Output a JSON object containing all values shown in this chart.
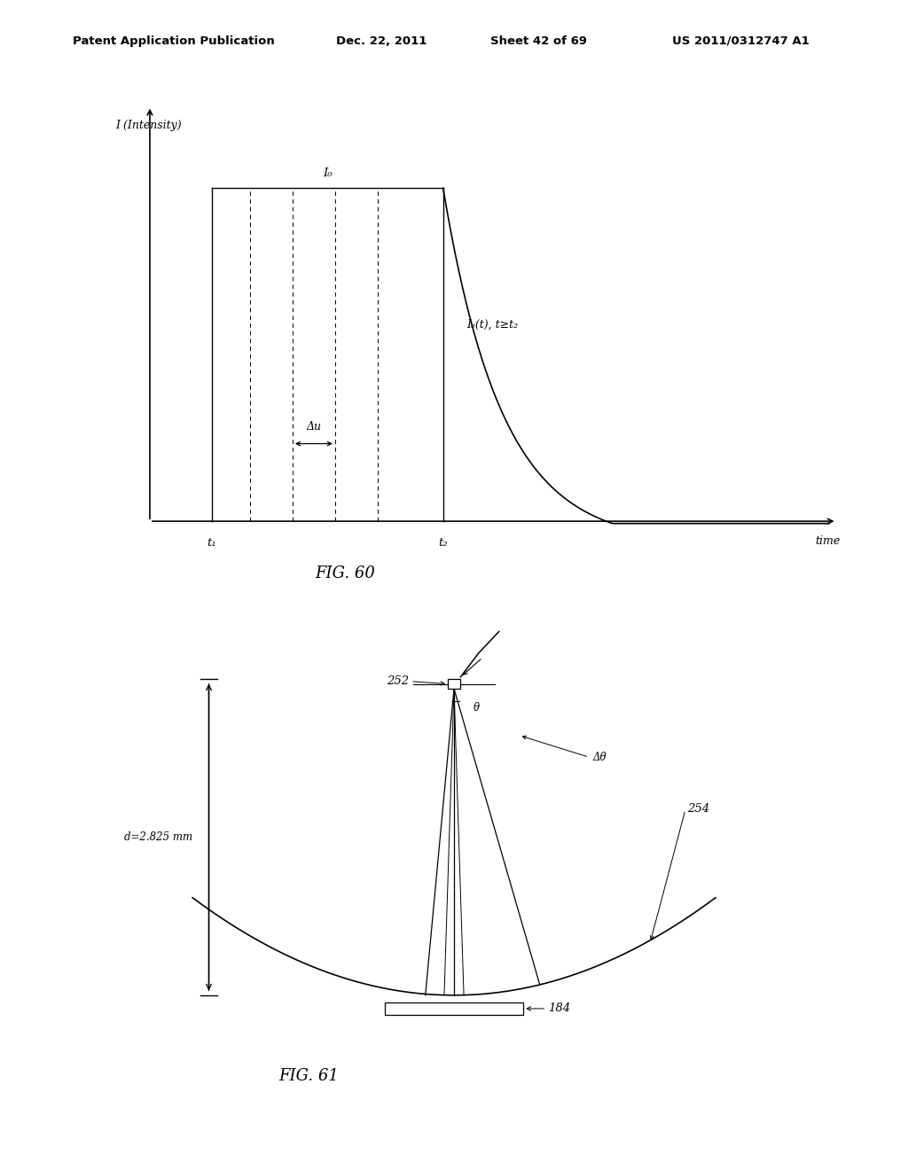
{
  "bg_color": "#ffffff",
  "header_text": "Patent Application Publication",
  "header_date": "Dec. 22, 2011",
  "header_sheet": "Sheet 42 of 69",
  "header_patent": "US 2011/0312747 A1",
  "fig60_title": "FIG. 60",
  "fig61_title": "FIG. 61",
  "fig60_ylabel": "I (Intensity)",
  "fig60_xlabel": "time",
  "fig60_I0_label": "I₀",
  "fig60_If_label": "Iₑ(t), t≥t₂",
  "fig60_delta_u_label": "Δu",
  "fig60_t1_label": "t₁",
  "fig60_t2_label": "t₂",
  "fig61_label_252": "252",
  "fig61_label_254": "254",
  "fig61_label_184": "184",
  "fig61_label_d": "d=2.825 mm",
  "fig61_label_theta": "θ",
  "fig61_label_delta_theta": "Δθ"
}
